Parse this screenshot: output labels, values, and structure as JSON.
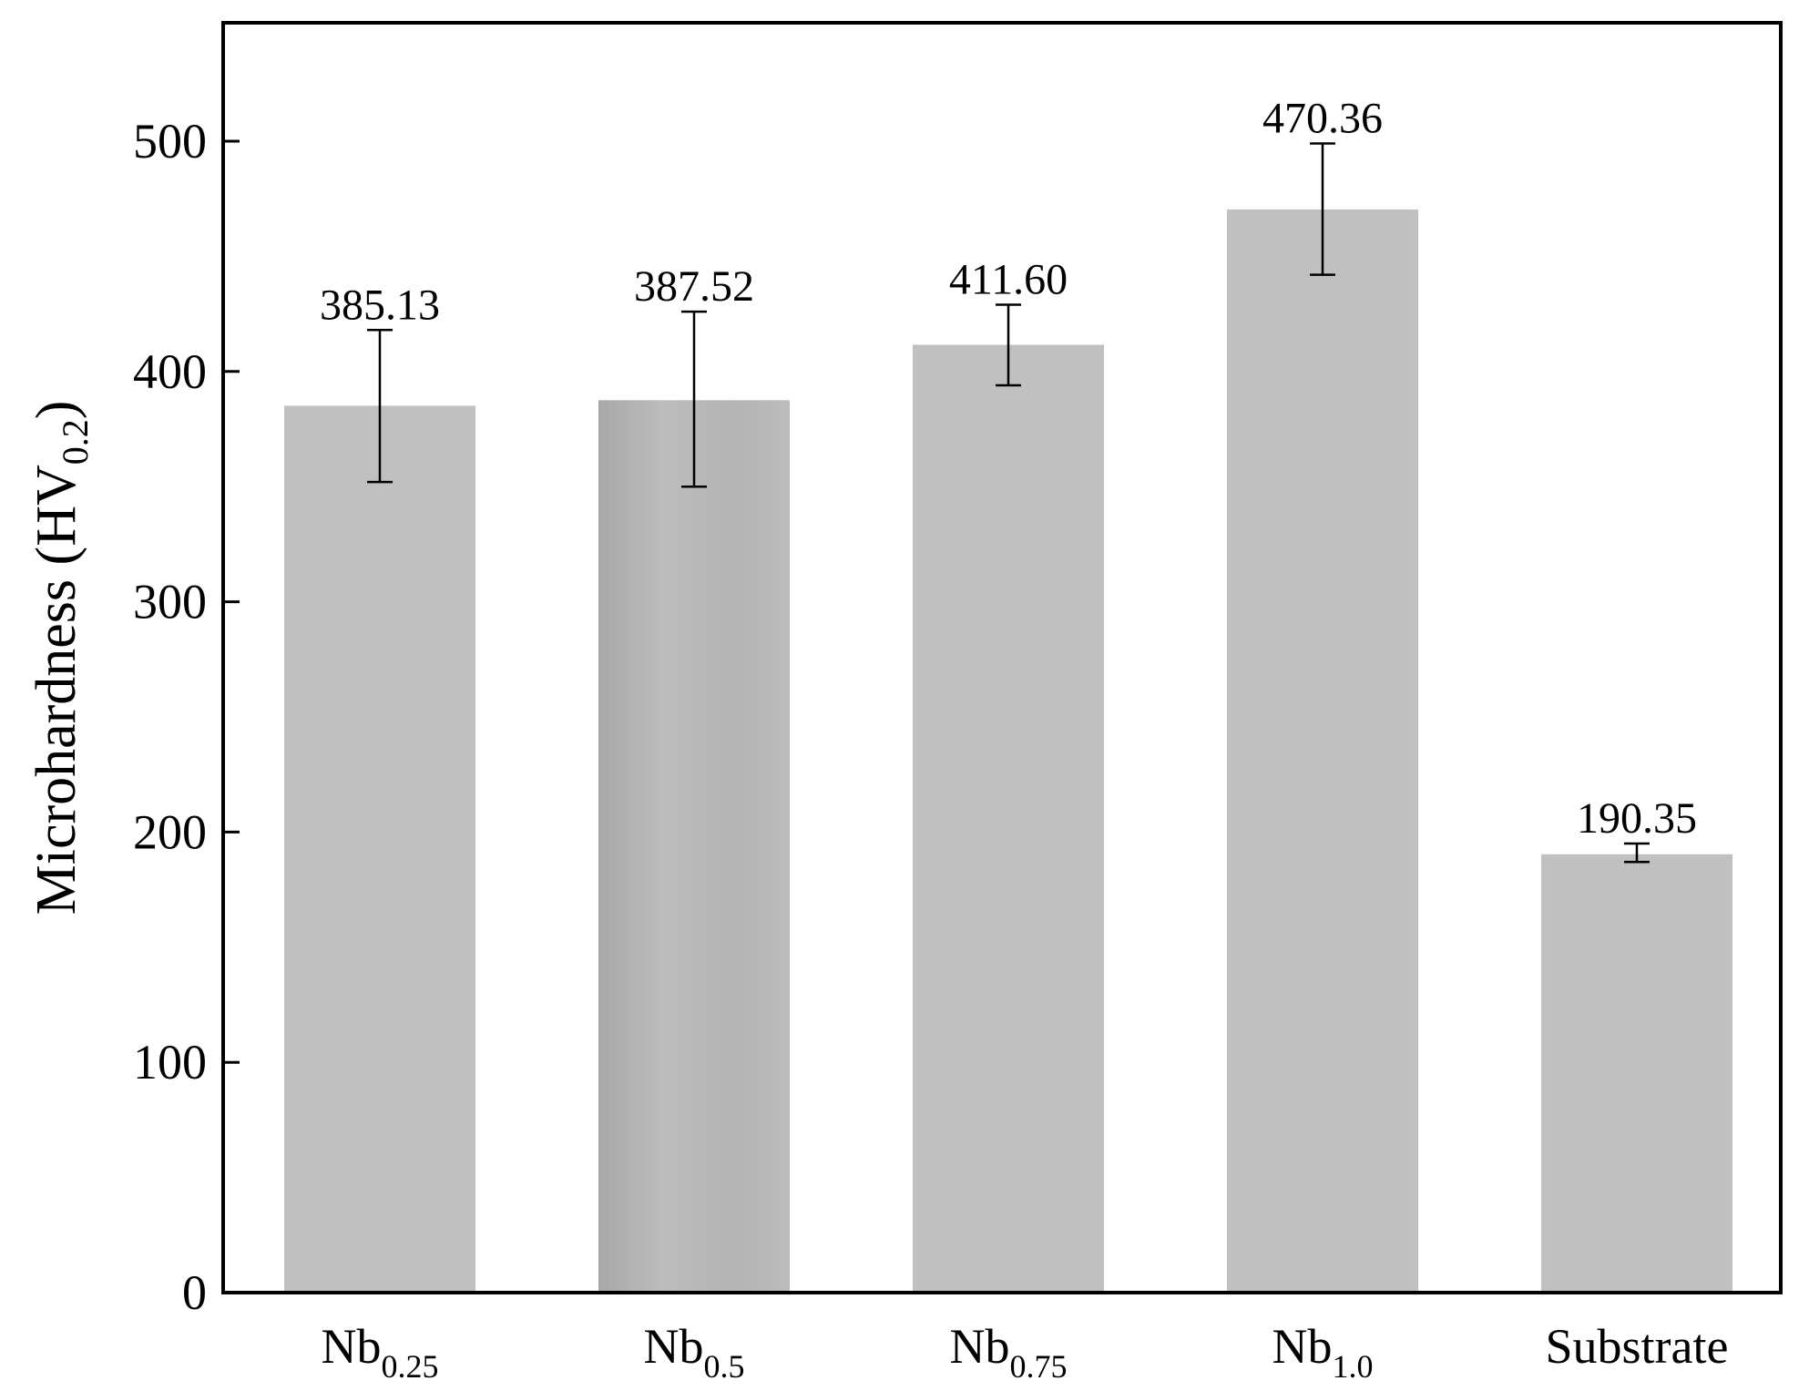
{
  "chart_data": {
    "type": "bar",
    "title": "",
    "xlabel": "",
    "ylabel": {
      "main": "Microhardness (HV",
      "sub": "0.2",
      "close": ")"
    },
    "ylim": [
      0,
      550
    ],
    "yticks": [
      0,
      100,
      200,
      300,
      400,
      500
    ],
    "categories": [
      {
        "main": "Nb",
        "sub": "0.25"
      },
      {
        "main": "Nb",
        "sub": "0.5"
      },
      {
        "main": "Nb",
        "sub": "0.75"
      },
      {
        "main": "Nb",
        "sub": "1.0"
      },
      {
        "main": "Substrate",
        "sub": ""
      }
    ],
    "values": [
      385.13,
      387.52,
      411.6,
      470.36,
      190.35
    ],
    "value_labels": [
      "385.13",
      "387.52",
      "411.60",
      "470.36",
      "190.35"
    ],
    "error_upper": [
      418,
      426,
      429,
      499,
      195
    ],
    "error_lower": [
      352,
      350,
      394,
      442,
      187
    ],
    "grid": false,
    "legend": "none",
    "colors": {
      "bar": "#c0c0c0",
      "error_bar": "#000000",
      "axis": "#000000"
    }
  }
}
